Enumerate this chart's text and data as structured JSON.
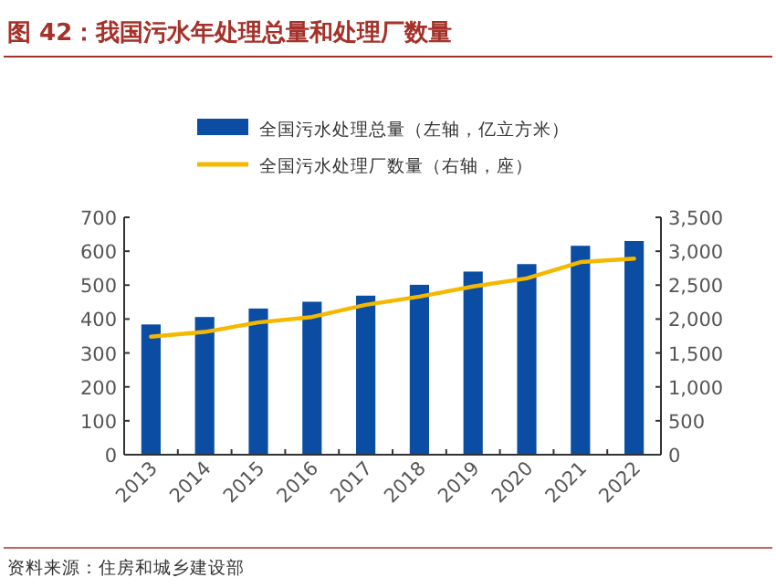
{
  "chart_data": {
    "type": "bar",
    "title": "图 42：我国污水年处理总量和处理厂数量",
    "categories": [
      "2013",
      "2014",
      "2015",
      "2016",
      "2017",
      "2018",
      "2019",
      "2020",
      "2021",
      "2022"
    ],
    "series": [
      {
        "name": "全国污水处理总量（左轴，亿立方米）",
        "color": "#0b4da2",
        "values": [
          384,
          406,
          431,
          451,
          469,
          501,
          540,
          562,
          616,
          630
        ]
      },
      {
        "name": "全国污水处理厂数量（右轴，座）",
        "type": "line",
        "axis": "y2",
        "color": "#f5b800",
        "values": [
          1740,
          1810,
          1950,
          2030,
          2210,
          2330,
          2480,
          2600,
          2840,
          2890
        ]
      }
    ],
    "ylim": [
      0,
      700
    ],
    "yticks": [
      0,
      100,
      200,
      300,
      400,
      500,
      600,
      700
    ],
    "y2lim": [
      0,
      3500
    ],
    "y2ticks": [
      0,
      500,
      {
        "value": 1000,
        "label": "1,000"
      },
      {
        "value": 1500,
        "label": "1,500"
      },
      {
        "value": 2000,
        "label": "2,000"
      },
      {
        "value": 2500,
        "label": "2,500"
      },
      {
        "value": 3000,
        "label": "3,000"
      },
      {
        "value": 3500,
        "label": "3,500"
      }
    ],
    "legend": "top",
    "grid": false,
    "annotations": [
      "资料来源：住房和城乡建设部"
    ]
  }
}
